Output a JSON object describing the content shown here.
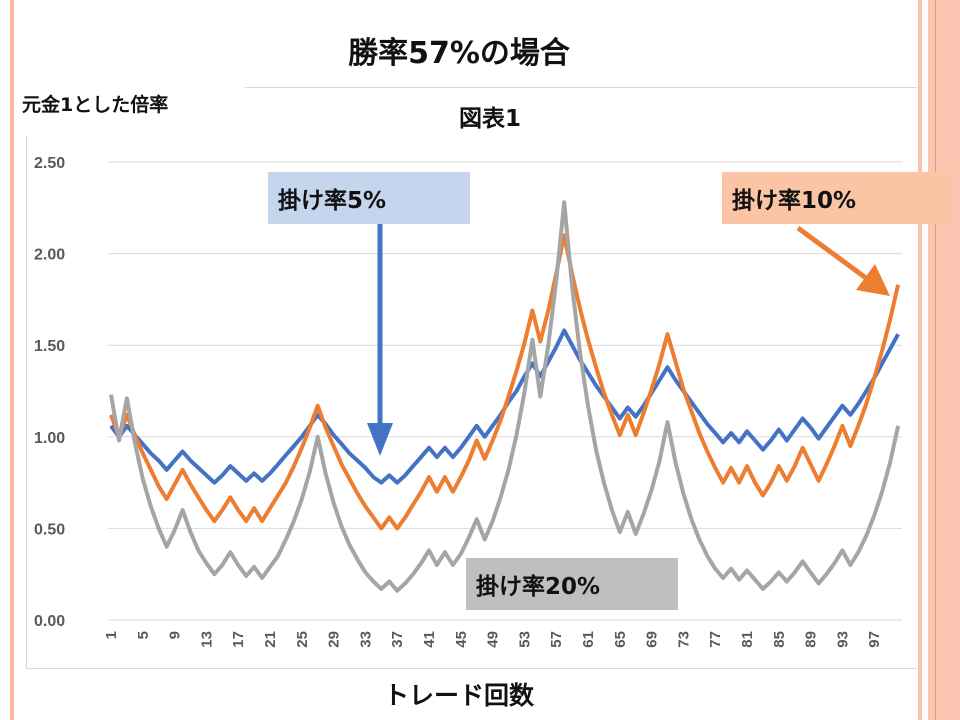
{
  "slide": {
    "title": "勝率57%の場合"
  },
  "annotations": {
    "rate5": "掛け率5%",
    "rate10": "掛け率10%",
    "rate20": "掛け率20%"
  },
  "chart_data": {
    "type": "line",
    "title": "図表1",
    "ylabel": "元金1とした倍率",
    "xlabel": "トレード回数",
    "ylim": [
      0,
      2.5
    ],
    "yticks": [
      "0.00",
      "0.50",
      "1.00",
      "1.50",
      "2.00",
      "2.50"
    ],
    "xticks": [
      "1",
      "5",
      "9",
      "13",
      "17",
      "21",
      "25",
      "29",
      "33",
      "37",
      "41",
      "45",
      "49",
      "53",
      "57",
      "61",
      "65",
      "69",
      "73",
      "77",
      "81",
      "85",
      "89",
      "93",
      "97"
    ],
    "grid": true,
    "legend": "none",
    "x": [
      1,
      2,
      3,
      4,
      5,
      6,
      7,
      8,
      9,
      10,
      11,
      12,
      13,
      14,
      15,
      16,
      17,
      18,
      19,
      20,
      21,
      22,
      23,
      24,
      25,
      26,
      27,
      28,
      29,
      30,
      31,
      32,
      33,
      34,
      35,
      36,
      37,
      38,
      39,
      40,
      41,
      42,
      43,
      44,
      45,
      46,
      47,
      48,
      49,
      50,
      51,
      52,
      53,
      54,
      55,
      56,
      57,
      58,
      59,
      60,
      61,
      62,
      63,
      64,
      65,
      66,
      67,
      68,
      69,
      70,
      71,
      72,
      73,
      74,
      75,
      76,
      77,
      78,
      79,
      80,
      81,
      82,
      83,
      84,
      85,
      86,
      87,
      88,
      89,
      90,
      91,
      92,
      93,
      94,
      95,
      96,
      97,
      98,
      99,
      100
    ],
    "series": [
      {
        "color": "#4472c4",
        "values": [
          1.06,
          1.0,
          1.06,
          1.01,
          0.96,
          0.91,
          0.87,
          0.82,
          0.87,
          0.92,
          0.87,
          0.83,
          0.79,
          0.75,
          0.79,
          0.84,
          0.8,
          0.76,
          0.8,
          0.76,
          0.8,
          0.85,
          0.9,
          0.95,
          1.0,
          1.06,
          1.12,
          1.07,
          1.01,
          0.96,
          0.91,
          0.87,
          0.83,
          0.78,
          0.75,
          0.79,
          0.75,
          0.79,
          0.84,
          0.89,
          0.94,
          0.89,
          0.94,
          0.89,
          0.94,
          1.0,
          1.06,
          1.0,
          1.06,
          1.12,
          1.19,
          1.25,
          1.33,
          1.4,
          1.33,
          1.41,
          1.49,
          1.58,
          1.5,
          1.42,
          1.35,
          1.28,
          1.22,
          1.16,
          1.1,
          1.16,
          1.11,
          1.17,
          1.24,
          1.31,
          1.38,
          1.31,
          1.25,
          1.19,
          1.13,
          1.07,
          1.02,
          0.97,
          1.02,
          0.97,
          1.03,
          0.98,
          0.93,
          0.98,
          1.04,
          0.98,
          1.04,
          1.1,
          1.05,
          0.99,
          1.05,
          1.11,
          1.17,
          1.12,
          1.18,
          1.25,
          1.32,
          1.4,
          1.48,
          1.56
        ]
      },
      {
        "color": "#ed7d31",
        "values": [
          1.12,
          1.0,
          1.12,
          1.01,
          0.91,
          0.82,
          0.73,
          0.66,
          0.74,
          0.82,
          0.74,
          0.67,
          0.6,
          0.54,
          0.6,
          0.67,
          0.6,
          0.54,
          0.61,
          0.54,
          0.61,
          0.68,
          0.75,
          0.84,
          0.94,
          1.05,
          1.17,
          1.05,
          0.95,
          0.85,
          0.77,
          0.69,
          0.62,
          0.56,
          0.5,
          0.56,
          0.5,
          0.56,
          0.63,
          0.7,
          0.78,
          0.7,
          0.78,
          0.7,
          0.78,
          0.87,
          0.98,
          0.88,
          0.98,
          1.09,
          1.22,
          1.36,
          1.51,
          1.69,
          1.52,
          1.69,
          1.89,
          2.1,
          1.89,
          1.7,
          1.53,
          1.38,
          1.24,
          1.12,
          1.01,
          1.12,
          1.01,
          1.13,
          1.26,
          1.4,
          1.56,
          1.41,
          1.26,
          1.14,
          1.02,
          0.92,
          0.83,
          0.75,
          0.83,
          0.75,
          0.84,
          0.75,
          0.68,
          0.75,
          0.84,
          0.76,
          0.84,
          0.94,
          0.85,
          0.76,
          0.85,
          0.95,
          1.06,
          0.95,
          1.06,
          1.18,
          1.32,
          1.47,
          1.64,
          1.83
        ]
      },
      {
        "color": "#a5a5a5",
        "values": [
          1.23,
          0.98,
          1.21,
          0.97,
          0.77,
          0.62,
          0.5,
          0.4,
          0.49,
          0.6,
          0.48,
          0.38,
          0.31,
          0.25,
          0.3,
          0.37,
          0.3,
          0.24,
          0.29,
          0.23,
          0.29,
          0.35,
          0.44,
          0.54,
          0.66,
          0.81,
          1.0,
          0.8,
          0.64,
          0.51,
          0.41,
          0.33,
          0.26,
          0.21,
          0.17,
          0.21,
          0.16,
          0.2,
          0.25,
          0.31,
          0.38,
          0.3,
          0.37,
          0.3,
          0.36,
          0.45,
          0.55,
          0.44,
          0.54,
          0.67,
          0.82,
          1.01,
          1.24,
          1.53,
          1.22,
          1.5,
          1.85,
          2.28,
          1.82,
          1.46,
          1.17,
          0.93,
          0.75,
          0.6,
          0.48,
          0.59,
          0.47,
          0.58,
          0.71,
          0.87,
          1.08,
          0.86,
          0.69,
          0.55,
          0.44,
          0.35,
          0.28,
          0.23,
          0.28,
          0.22,
          0.27,
          0.22,
          0.17,
          0.21,
          0.26,
          0.21,
          0.26,
          0.32,
          0.26,
          0.2,
          0.25,
          0.31,
          0.38,
          0.3,
          0.37,
          0.46,
          0.57,
          0.7,
          0.86,
          1.06
        ]
      }
    ]
  }
}
